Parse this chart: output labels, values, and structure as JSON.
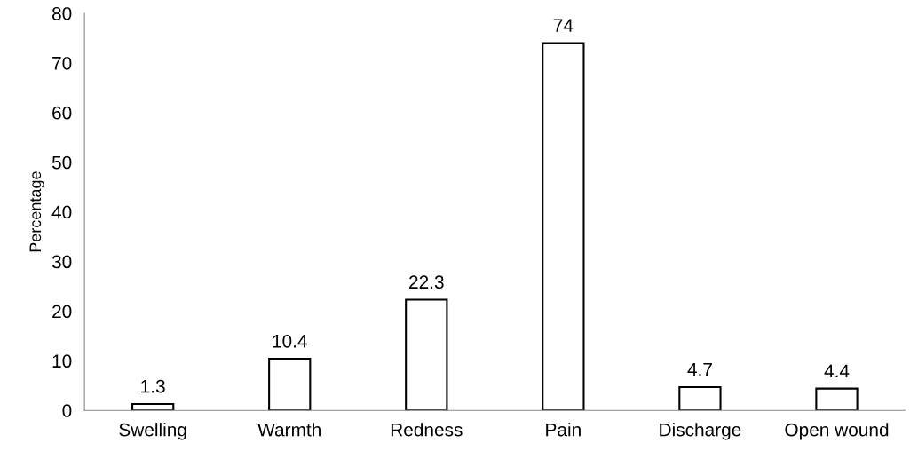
{
  "chart_data": {
    "type": "bar",
    "ylabel": "Percentage",
    "categories": [
      "Swelling",
      "Warmth",
      "Redness",
      "Pain",
      "Discharge",
      "Open wound"
    ],
    "values": [
      1.3,
      10.4,
      22.3,
      74,
      4.7,
      4.4
    ],
    "color": "#ffffff",
    "ylim": [
      0,
      80
    ],
    "yticks": [
      0,
      10,
      20,
      30,
      40,
      50,
      60,
      70,
      80
    ],
    "data_labels": true,
    "grid": false,
    "legend": false
  }
}
